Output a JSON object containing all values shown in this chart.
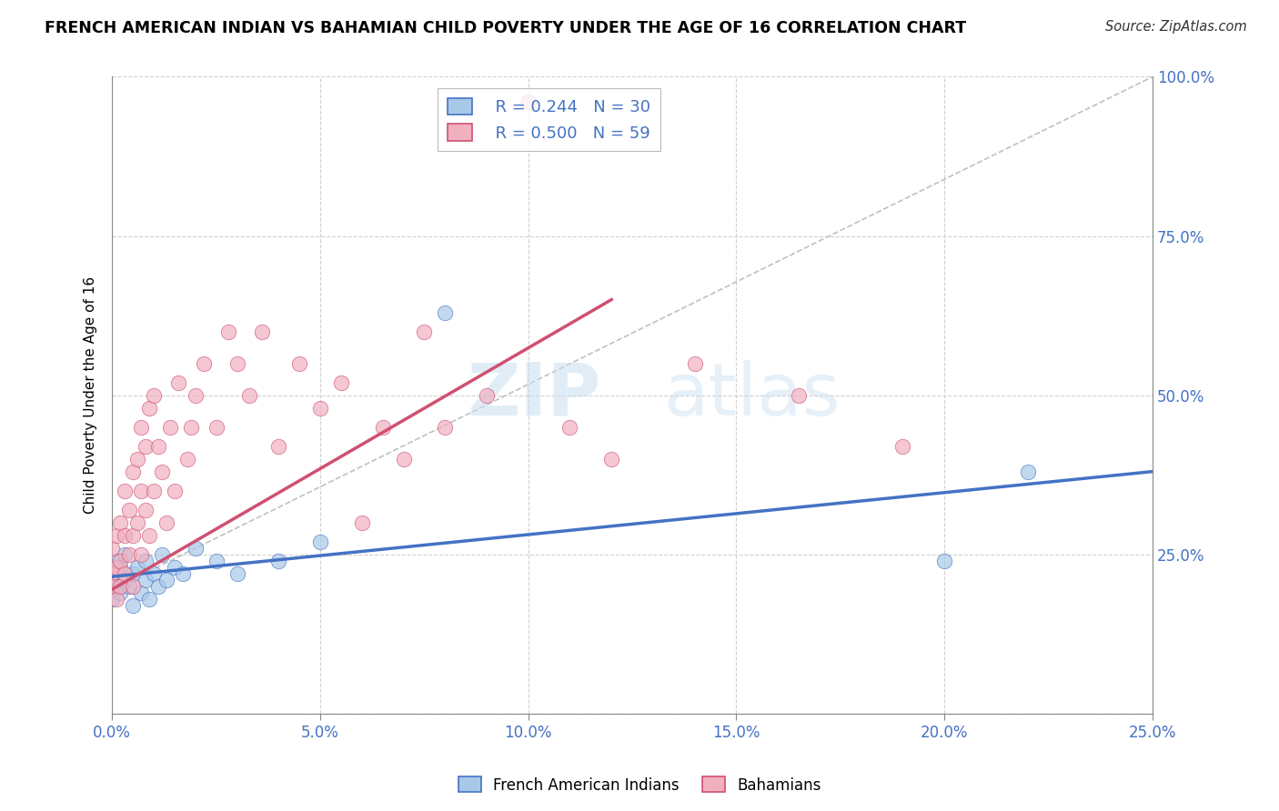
{
  "title": "FRENCH AMERICAN INDIAN VS BAHAMIAN CHILD POVERTY UNDER THE AGE OF 16 CORRELATION CHART",
  "source": "Source: ZipAtlas.com",
  "ylabel": "Child Poverty Under the Age of 16",
  "xlim": [
    0.0,
    0.25
  ],
  "ylim": [
    0.0,
    1.0
  ],
  "xticks": [
    0.0,
    0.05,
    0.1,
    0.15,
    0.2,
    0.25
  ],
  "yticks": [
    0.0,
    0.25,
    0.5,
    0.75,
    1.0
  ],
  "xtick_labels": [
    "0.0%",
    "5.0%",
    "10.0%",
    "15.0%",
    "20.0%",
    "25.0%"
  ],
  "ytick_labels_right": [
    "",
    "25.0%",
    "50.0%",
    "75.0%",
    "100.0%"
  ],
  "blue_color": "#a8c8e8",
  "pink_color": "#f0b0c0",
  "blue_line_color": "#4472c4",
  "pink_line_color": "#d05070",
  "legend_label_blue": "French American Indians",
  "legend_label_pink": "Bahamians",
  "watermark_zip": "ZIP",
  "watermark_atlas": "atlas",
  "blue_trend": [
    0.0,
    0.25,
    0.215,
    0.38
  ],
  "pink_trend": [
    0.0,
    0.12,
    0.195,
    0.65
  ],
  "diag_line": [
    0.0,
    0.25,
    0.195,
    1.0
  ],
  "blue_points_x": [
    0.0,
    0.0,
    0.001,
    0.001,
    0.002,
    0.002,
    0.003,
    0.003,
    0.004,
    0.005,
    0.005,
    0.006,
    0.007,
    0.008,
    0.008,
    0.009,
    0.01,
    0.011,
    0.012,
    0.013,
    0.015,
    0.017,
    0.02,
    0.025,
    0.03,
    0.04,
    0.05,
    0.08,
    0.2,
    0.22
  ],
  "blue_points_y": [
    0.22,
    0.18,
    0.24,
    0.2,
    0.19,
    0.23,
    0.21,
    0.25,
    0.2,
    0.22,
    0.17,
    0.23,
    0.19,
    0.24,
    0.21,
    0.18,
    0.22,
    0.2,
    0.25,
    0.21,
    0.23,
    0.22,
    0.26,
    0.24,
    0.22,
    0.24,
    0.27,
    0.63,
    0.24,
    0.38
  ],
  "pink_points_x": [
    0.0,
    0.0,
    0.0,
    0.001,
    0.001,
    0.001,
    0.002,
    0.002,
    0.002,
    0.003,
    0.003,
    0.003,
    0.004,
    0.004,
    0.005,
    0.005,
    0.005,
    0.006,
    0.006,
    0.007,
    0.007,
    0.007,
    0.008,
    0.008,
    0.009,
    0.009,
    0.01,
    0.01,
    0.011,
    0.012,
    0.013,
    0.014,
    0.015,
    0.016,
    0.018,
    0.019,
    0.02,
    0.022,
    0.025,
    0.028,
    0.03,
    0.033,
    0.036,
    0.04,
    0.045,
    0.05,
    0.055,
    0.06,
    0.065,
    0.07,
    0.075,
    0.08,
    0.09,
    0.1,
    0.11,
    0.12,
    0.14,
    0.165,
    0.19
  ],
  "pink_points_y": [
    0.22,
    0.26,
    0.2,
    0.28,
    0.23,
    0.18,
    0.3,
    0.24,
    0.2,
    0.35,
    0.28,
    0.22,
    0.32,
    0.25,
    0.38,
    0.28,
    0.2,
    0.4,
    0.3,
    0.45,
    0.35,
    0.25,
    0.42,
    0.32,
    0.48,
    0.28,
    0.5,
    0.35,
    0.42,
    0.38,
    0.3,
    0.45,
    0.35,
    0.52,
    0.4,
    0.45,
    0.5,
    0.55,
    0.45,
    0.6,
    0.55,
    0.5,
    0.6,
    0.42,
    0.55,
    0.48,
    0.52,
    0.3,
    0.45,
    0.4,
    0.6,
    0.45,
    0.5,
    0.96,
    0.45,
    0.4,
    0.55,
    0.5,
    0.42
  ]
}
